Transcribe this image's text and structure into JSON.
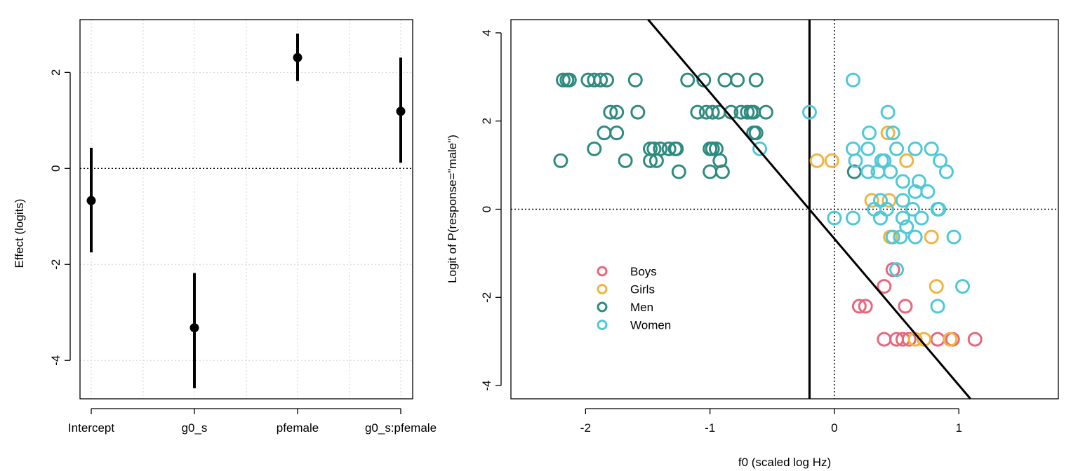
{
  "chart_data": [
    {
      "type": "scatter",
      "subtype": "coefficient-plot-with-intervals",
      "title": "",
      "xlabel": "",
      "ylabel": "Effect (logits)",
      "ylim": [
        -4.8,
        3.1
      ],
      "yticks": [
        -4,
        -2,
        0,
        2
      ],
      "ytick_labels": [
        "-4",
        "-2",
        "0",
        "2"
      ],
      "categories": [
        "Intercept",
        "g0_s",
        "pfemale",
        "g0_s:pfemale"
      ],
      "estimates": [
        -0.67,
        -3.32,
        2.31,
        1.19
      ],
      "lower": [
        -1.75,
        -4.58,
        1.82,
        0.12
      ],
      "upper": [
        0.43,
        -2.18,
        2.81,
        2.31
      ],
      "reference_line": 0,
      "grid": true
    },
    {
      "type": "scatter",
      "title": "",
      "xlabel": "f0 (scaled log Hz)",
      "ylabel": "Logit of P(response=\"male\")",
      "xlim": [
        -2.6,
        1.8
      ],
      "ylim": [
        -4.3,
        4.3
      ],
      "xticks": [
        -2,
        -1,
        0,
        1
      ],
      "xtick_labels": [
        "-2",
        "-1",
        "0",
        "1"
      ],
      "yticks": [
        -4,
        -2,
        0,
        2,
        4
      ],
      "ytick_labels": [
        "-4",
        "-2",
        "0",
        "2",
        "4"
      ],
      "grid": false,
      "legend_position": "bottom-left",
      "reference_lines": {
        "horizontal": 0,
        "vertical_dotted": 0,
        "vertical_solid": -0.2
      },
      "fit_line": {
        "intercept": -0.67,
        "slope": -3.32
      },
      "series": [
        {
          "name": "Boys",
          "color": "#e8677d",
          "points": [
            [
              0.47,
              -1.37
            ],
            [
              0.4,
              -1.75
            ],
            [
              0.2,
              -2.2
            ],
            [
              0.25,
              -2.2
            ],
            [
              0.57,
              -2.2
            ],
            [
              0.4,
              -2.95
            ],
            [
              0.5,
              -2.95
            ],
            [
              0.55,
              -2.95
            ],
            [
              0.6,
              -2.95
            ],
            [
              0.83,
              -2.95
            ],
            [
              0.95,
              -2.95
            ],
            [
              1.13,
              -2.95
            ]
          ]
        },
        {
          "name": "Girls",
          "color": "#f2b440",
          "points": [
            [
              -0.14,
              1.1
            ],
            [
              -0.02,
              1.1
            ],
            [
              0.58,
              1.1
            ],
            [
              0.43,
              1.73
            ],
            [
              0.3,
              0.2
            ],
            [
              0.44,
              0.2
            ],
            [
              0.45,
              -0.63
            ],
            [
              0.78,
              -0.63
            ],
            [
              0.82,
              -1.75
            ],
            [
              0.65,
              -2.95
            ],
            [
              0.72,
              -2.95
            ],
            [
              0.93,
              -2.95
            ]
          ]
        },
        {
          "name": "Men",
          "color": "#2e8b80",
          "points": [
            [
              -2.18,
              2.93
            ],
            [
              -2.15,
              2.93
            ],
            [
              -2.13,
              2.93
            ],
            [
              -1.98,
              2.93
            ],
            [
              -1.93,
              2.93
            ],
            [
              -1.88,
              2.93
            ],
            [
              -1.83,
              2.93
            ],
            [
              -1.6,
              2.93
            ],
            [
              -1.18,
              2.93
            ],
            [
              -1.05,
              2.93
            ],
            [
              -0.88,
              2.93
            ],
            [
              -0.78,
              2.93
            ],
            [
              -0.63,
              2.93
            ],
            [
              -1.8,
              2.2
            ],
            [
              -1.75,
              2.2
            ],
            [
              -1.58,
              2.2
            ],
            [
              -1.1,
              2.2
            ],
            [
              -1.03,
              2.2
            ],
            [
              -0.98,
              2.2
            ],
            [
              -0.93,
              2.2
            ],
            [
              -0.83,
              2.2
            ],
            [
              -0.75,
              2.2
            ],
            [
              -0.7,
              2.2
            ],
            [
              -0.67,
              2.2
            ],
            [
              -0.55,
              2.2
            ],
            [
              -0.65,
              2.2
            ],
            [
              -1.85,
              1.73
            ],
            [
              -1.75,
              1.73
            ],
            [
              -0.65,
              1.73
            ],
            [
              -0.63,
              1.73
            ],
            [
              -1.93,
              1.37
            ],
            [
              -1.48,
              1.37
            ],
            [
              -1.45,
              1.37
            ],
            [
              -1.4,
              1.37
            ],
            [
              -1.33,
              1.37
            ],
            [
              -1.28,
              1.37
            ],
            [
              -1.27,
              1.37
            ],
            [
              -1.0,
              1.37
            ],
            [
              -0.98,
              1.37
            ],
            [
              -0.95,
              1.37
            ],
            [
              -2.2,
              1.1
            ],
            [
              -1.68,
              1.1
            ],
            [
              -1.48,
              1.1
            ],
            [
              -1.43,
              1.1
            ],
            [
              -0.92,
              1.1
            ],
            [
              -1.25,
              0.85
            ],
            [
              -1.0,
              0.85
            ],
            [
              -0.9,
              0.85
            ],
            [
              0.16,
              0.85
            ]
          ]
        },
        {
          "name": "Women",
          "color": "#4fc8d8",
          "points": [
            [
              0.15,
              2.93
            ],
            [
              -0.2,
              2.2
            ],
            [
              0.43,
              2.2
            ],
            [
              0.28,
              1.73
            ],
            [
              0.47,
              1.73
            ],
            [
              -0.6,
              1.37
            ],
            [
              0.15,
              1.37
            ],
            [
              0.27,
              1.37
            ],
            [
              0.5,
              1.37
            ],
            [
              0.65,
              1.37
            ],
            [
              0.78,
              1.37
            ],
            [
              0.17,
              1.1
            ],
            [
              0.38,
              1.1
            ],
            [
              0.4,
              1.1
            ],
            [
              0.85,
              1.1
            ],
            [
              0.27,
              0.85
            ],
            [
              0.35,
              0.85
            ],
            [
              0.45,
              0.85
            ],
            [
              0.9,
              0.85
            ],
            [
              0.55,
              0.63
            ],
            [
              0.68,
              0.63
            ],
            [
              0.65,
              0.4
            ],
            [
              0.75,
              0.4
            ],
            [
              0.37,
              0.2
            ],
            [
              0.55,
              0.2
            ],
            [
              0.32,
              0.0
            ],
            [
              0.42,
              0.0
            ],
            [
              0.63,
              0.0
            ],
            [
              0.83,
              0.0
            ],
            [
              0.84,
              0.0
            ],
            [
              0.0,
              -0.2
            ],
            [
              0.15,
              -0.2
            ],
            [
              0.37,
              -0.2
            ],
            [
              0.55,
              -0.2
            ],
            [
              0.7,
              -0.2
            ],
            [
              0.58,
              -0.4
            ],
            [
              0.47,
              -0.63
            ],
            [
              0.53,
              -0.63
            ],
            [
              0.65,
              -0.63
            ],
            [
              0.96,
              -0.63
            ],
            [
              0.5,
              -1.37
            ],
            [
              1.03,
              -1.75
            ],
            [
              0.83,
              -2.2
            ]
          ]
        }
      ]
    }
  ]
}
